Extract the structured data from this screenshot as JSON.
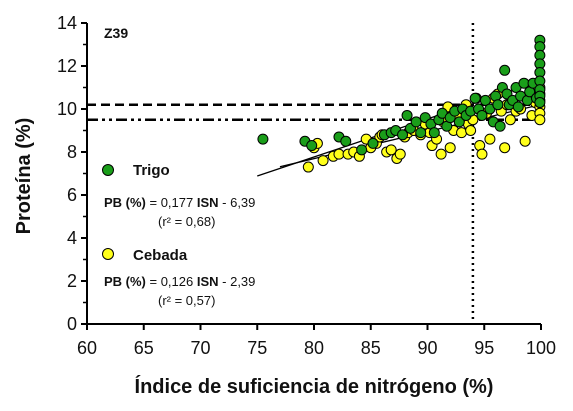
{
  "chart_data": {
    "type": "scatter",
    "panel_label": "Z39",
    "xlabel": "Índice de suficiencia de nitrógeno (%)",
    "ylabel": "Proteína (%)",
    "xlim": [
      60,
      100
    ],
    "ylim": [
      0,
      14
    ],
    "xticks": [
      "60",
      "65",
      "70",
      "75",
      "80",
      "85",
      "90",
      "95",
      "100"
    ],
    "yticks": [
      "0",
      "2",
      "4",
      "6",
      "8",
      "10",
      "12",
      "14"
    ],
    "reference_lines": {
      "vertical_x": 94,
      "horizontal_dashed_y": 10.2,
      "horizontal_dashdot_y": 9.5
    },
    "series": [
      {
        "name": "Trigo",
        "color": "#1a9e1a",
        "regression": {
          "slope": 0.177,
          "intercept": -6.39,
          "x_range": [
            75,
            100
          ],
          "line_color": "#000000"
        },
        "equation": {
          "lhs": "PB (%)",
          "mid": " = 0,177 ",
          "var": "ISN",
          "rhs": " - 6,39",
          "r2": "(r² = 0,68)"
        },
        "points": [
          [
            75.5,
            8.6
          ],
          [
            79.2,
            8.5
          ],
          [
            79.8,
            8.3
          ],
          [
            82.2,
            8.7
          ],
          [
            82.8,
            8.5
          ],
          [
            84.2,
            8.1
          ],
          [
            85.2,
            8.4
          ],
          [
            86.2,
            8.8
          ],
          [
            86.8,
            8.9
          ],
          [
            87.2,
            9.0
          ],
          [
            87.8,
            8.8
          ],
          [
            88.2,
            9.7
          ],
          [
            88.5,
            9.1
          ],
          [
            89.0,
            9.4
          ],
          [
            89.4,
            8.9
          ],
          [
            89.8,
            9.6
          ],
          [
            90.3,
            9.3
          ],
          [
            90.6,
            8.9
          ],
          [
            91.0,
            9.5
          ],
          [
            91.3,
            9.8
          ],
          [
            91.7,
            9.2
          ],
          [
            92.0,
            9.6
          ],
          [
            92.4,
            9.9
          ],
          [
            92.8,
            9.4
          ],
          [
            93.1,
            10.0
          ],
          [
            93.4,
            9.7
          ],
          [
            93.8,
            9.9
          ],
          [
            94.2,
            10.5
          ],
          [
            94.5,
            10.0
          ],
          [
            94.8,
            9.7
          ],
          [
            95.1,
            10.4
          ],
          [
            95.5,
            10.0
          ],
          [
            95.8,
            9.4
          ],
          [
            96.0,
            10.6
          ],
          [
            96.2,
            10.2
          ],
          [
            96.4,
            9.2
          ],
          [
            96.6,
            11.0
          ],
          [
            96.8,
            11.8
          ],
          [
            97.0,
            10.7
          ],
          [
            97.2,
            10.2
          ],
          [
            97.5,
            10.4
          ],
          [
            97.8,
            11.0
          ],
          [
            98.0,
            10.1
          ],
          [
            98.2,
            10.6
          ],
          [
            98.5,
            11.2
          ],
          [
            98.8,
            10.4
          ],
          [
            99.0,
            10.8
          ],
          [
            99.3,
            11.2
          ],
          [
            99.6,
            10.5
          ],
          [
            99.9,
            13.2
          ],
          [
            99.9,
            12.9
          ],
          [
            99.9,
            12.5
          ],
          [
            99.9,
            12.1
          ],
          [
            99.9,
            11.7
          ],
          [
            99.9,
            11.3
          ],
          [
            99.9,
            10.9
          ],
          [
            99.9,
            10.6
          ],
          [
            99.9,
            10.3
          ]
        ]
      },
      {
        "name": "Cebada",
        "color": "#ffff1a",
        "regression": {
          "slope": 0.126,
          "intercept": -2.39,
          "x_range": [
            77,
            100
          ],
          "line_color": "#000000"
        },
        "equation": {
          "lhs": "PB (%)",
          "mid": " = 0,126 ",
          "var": "ISN",
          "rhs": " - 2,39",
          "r2": "(r² = 0,57)"
        },
        "points": [
          [
            79.5,
            7.3
          ],
          [
            80.0,
            8.2
          ],
          [
            80.3,
            8.4
          ],
          [
            80.8,
            7.6
          ],
          [
            81.7,
            7.8
          ],
          [
            82.2,
            7.9
          ],
          [
            83.0,
            7.9
          ],
          [
            83.5,
            8.0
          ],
          [
            84.0,
            7.8
          ],
          [
            84.6,
            8.6
          ],
          [
            85.0,
            8.2
          ],
          [
            85.5,
            8.4
          ],
          [
            85.8,
            8.7
          ],
          [
            86.0,
            8.8
          ],
          [
            86.4,
            8.0
          ],
          [
            86.8,
            8.1
          ],
          [
            87.3,
            7.7
          ],
          [
            87.6,
            7.9
          ],
          [
            88.0,
            8.7
          ],
          [
            88.3,
            8.9
          ],
          [
            88.8,
            9.0
          ],
          [
            89.4,
            8.8
          ],
          [
            89.8,
            9.3
          ],
          [
            90.2,
            8.9
          ],
          [
            90.4,
            8.3
          ],
          [
            90.8,
            8.6
          ],
          [
            91.2,
            7.9
          ],
          [
            91.4,
            9.4
          ],
          [
            91.8,
            10.1
          ],
          [
            92.0,
            8.2
          ],
          [
            92.3,
            9.0
          ],
          [
            92.7,
            9.6
          ],
          [
            93.0,
            8.9
          ],
          [
            93.4,
            10.2
          ],
          [
            93.6,
            9.3
          ],
          [
            93.8,
            9.0
          ],
          [
            94.0,
            9.5
          ],
          [
            94.3,
            10.5
          ],
          [
            94.6,
            8.3
          ],
          [
            94.8,
            7.9
          ],
          [
            95.2,
            9.8
          ],
          [
            95.5,
            8.6
          ],
          [
            95.8,
            10.5
          ],
          [
            96.2,
            10.7
          ],
          [
            96.5,
            9.9
          ],
          [
            96.8,
            8.2
          ],
          [
            97.0,
            10.2
          ],
          [
            97.3,
            9.5
          ],
          [
            97.8,
            9.9
          ],
          [
            98.2,
            10.0
          ],
          [
            98.6,
            8.5
          ],
          [
            98.9,
            10.6
          ],
          [
            99.2,
            9.7
          ],
          [
            99.5,
            10.3
          ],
          [
            99.9,
            11.0
          ],
          [
            99.9,
            10.7
          ],
          [
            99.9,
            10.4
          ],
          [
            99.9,
            10.1
          ],
          [
            99.9,
            9.8
          ],
          [
            99.9,
            9.5
          ]
        ]
      }
    ]
  }
}
